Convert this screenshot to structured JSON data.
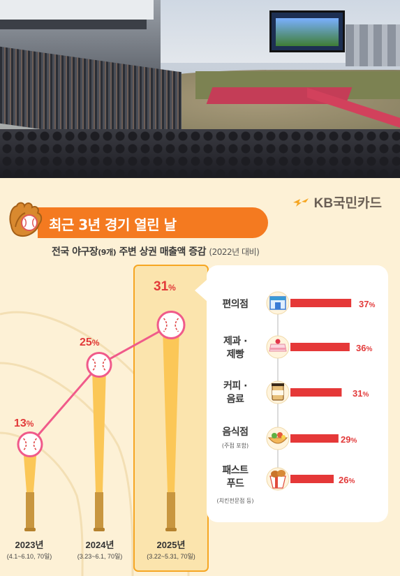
{
  "brand": {
    "name": "KB국민카드",
    "accent": "#f5a623"
  },
  "title": "최근 3년 경기 열린 날",
  "subtitle": {
    "main": "전국 야구장",
    "count": "(9개)",
    "rest": "주변 상권 매출액 증감",
    "base": "(2022년 대비)"
  },
  "chart_data": [
    {
      "type": "line",
      "categories": [
        "2023년",
        "2024년",
        "2025년"
      ],
      "period_notes": [
        "(4.1~6.10, 70일)",
        "(3.23~6.1, 70일)",
        "(3.22~5.31, 70일)"
      ],
      "series": [
        {
          "values": [
            13,
            25,
            31
          ]
        }
      ],
      "value_labels": [
        "13",
        "25",
        "31"
      ],
      "unit": "%",
      "ylim": [
        0,
        40
      ],
      "colors": {
        "line": "#f05a8a",
        "bat": "#fbc757",
        "highlight": "#f6a623"
      }
    },
    {
      "type": "bar",
      "orientation": "horizontal",
      "categories": [
        {
          "label_lines": [
            "편의점"
          ],
          "note": "",
          "icon": "convenience-store-icon"
        },
        {
          "label_lines": [
            "제과 ·",
            "제빵"
          ],
          "note": "",
          "icon": "cake-icon"
        },
        {
          "label_lines": [
            "커피 ·",
            "음료"
          ],
          "note": "",
          "icon": "coffee-cup-icon"
        },
        {
          "label_lines": [
            "음식점"
          ],
          "note": "(주점 포함)",
          "icon": "food-bowl-icon"
        },
        {
          "label_lines": [
            "패스트",
            "푸드"
          ],
          "note": "(치킨전문점 등)",
          "icon": "fried-chicken-icon"
        }
      ],
      "values": [
        37,
        36,
        31,
        29,
        26
      ],
      "value_labels": [
        "37",
        "36",
        "31",
        "29",
        "26"
      ],
      "unit": "%",
      "xlim": [
        0,
        40
      ],
      "colors": {
        "bar": "#e53838"
      }
    }
  ]
}
